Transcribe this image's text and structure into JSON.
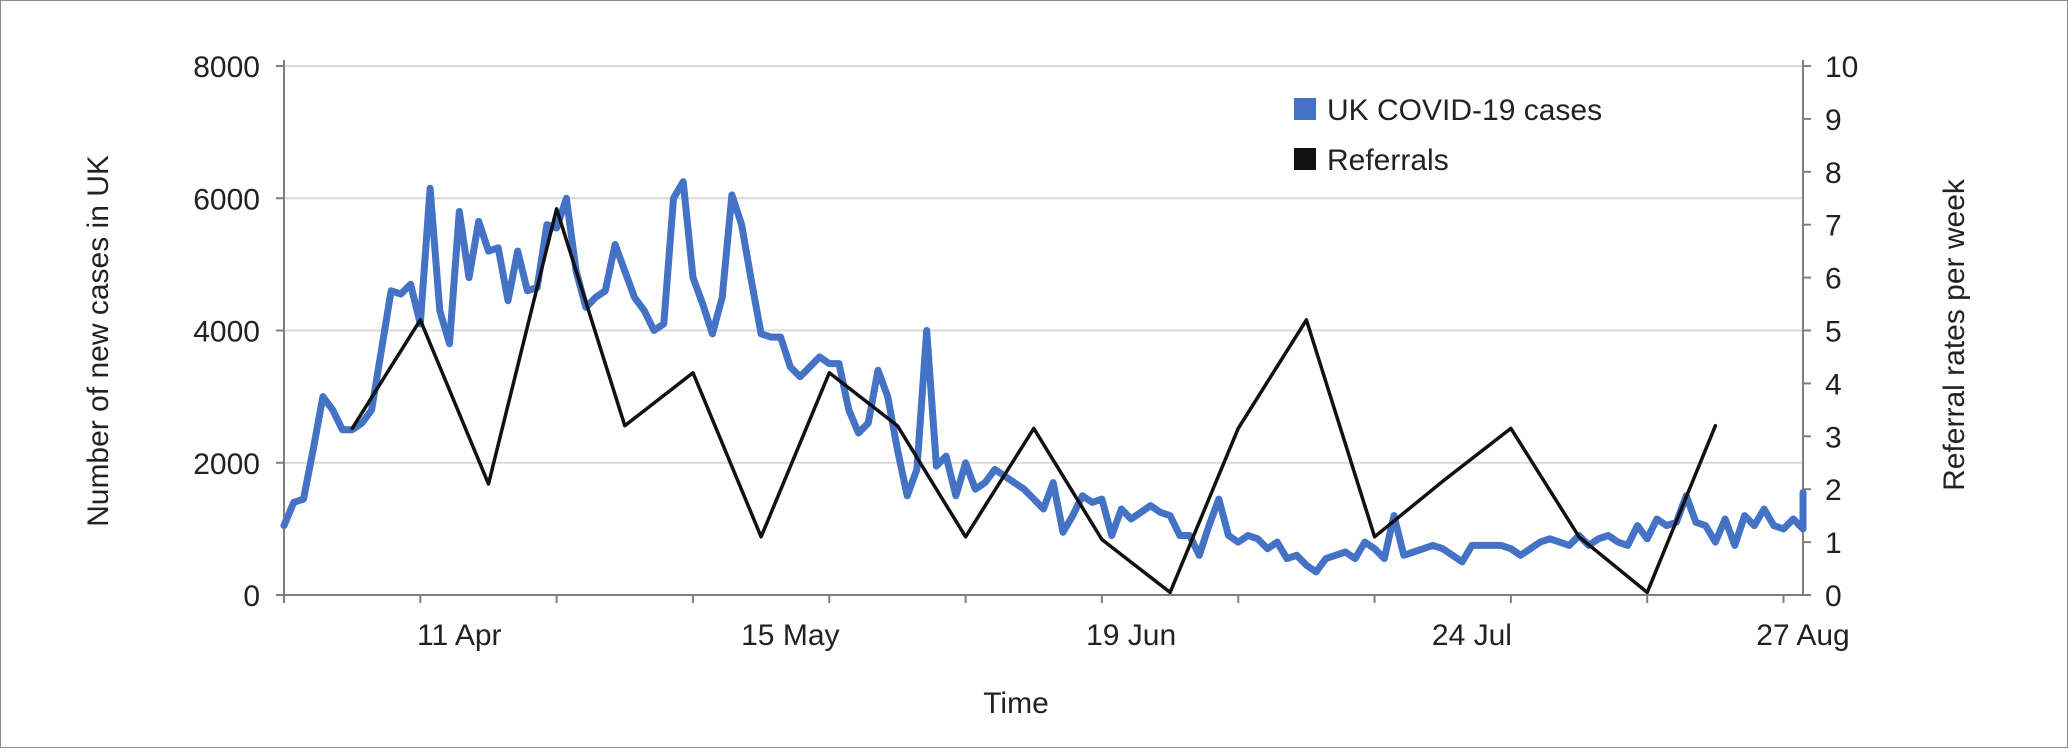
{
  "chart_data": {
    "type": "line",
    "title": "",
    "xlabel": "Time",
    "ylabel_left": "Number of new cases in UK",
    "ylabel_right": "Referral rates per week",
    "ylim_left": [
      0,
      8000
    ],
    "ylim_right": [
      0,
      10
    ],
    "grid": "horizontal",
    "legend_position": "top-right",
    "x_start_date": "2020-03-24",
    "x_end_date": "2020-08-27",
    "x_tick_labels": [
      {
        "date": "2020-04-11",
        "label": "11 Apr"
      },
      {
        "date": "2020-05-15",
        "label": "15 May"
      },
      {
        "date": "2020-06-19",
        "label": "19 Jun"
      },
      {
        "date": "2020-07-24",
        "label": "24 Jul"
      },
      {
        "date": "2020-08-27",
        "label": "27 Aug"
      }
    ],
    "y_left_ticks": [
      0,
      2000,
      4000,
      6000,
      8000
    ],
    "y_right_ticks": [
      0,
      1,
      2,
      3,
      4,
      5,
      6,
      7,
      8,
      9,
      10
    ],
    "series": [
      {
        "name": "UK COVID-19 cases",
        "axis": "left",
        "color": "#4472c4",
        "points": [
          [
            "2020-03-24",
            1050
          ],
          [
            "2020-03-25",
            1400
          ],
          [
            "2020-03-26",
            1450
          ],
          [
            "2020-03-27",
            2200
          ],
          [
            "2020-03-28",
            3000
          ],
          [
            "2020-03-29",
            2800
          ],
          [
            "2020-03-30",
            2500
          ],
          [
            "2020-03-31",
            2500
          ],
          [
            "2020-04-01",
            2600
          ],
          [
            "2020-04-02",
            2800
          ],
          [
            "2020-04-03",
            3700
          ],
          [
            "2020-04-04",
            4600
          ],
          [
            "2020-04-05",
            4550
          ],
          [
            "2020-04-06",
            4700
          ],
          [
            "2020-04-07",
            4100
          ],
          [
            "2020-04-08",
            6150
          ],
          [
            "2020-04-09",
            4300
          ],
          [
            "2020-04-10",
            3800
          ],
          [
            "2020-04-11",
            5800
          ],
          [
            "2020-04-12",
            4800
          ],
          [
            "2020-04-13",
            5650
          ],
          [
            "2020-04-14",
            5200
          ],
          [
            "2020-04-15",
            5250
          ],
          [
            "2020-04-16",
            4450
          ],
          [
            "2020-04-17",
            5200
          ],
          [
            "2020-04-18",
            4600
          ],
          [
            "2020-04-19",
            4650
          ],
          [
            "2020-04-20",
            5600
          ],
          [
            "2020-04-21",
            5550
          ],
          [
            "2020-04-22",
            6000
          ],
          [
            "2020-04-23",
            4900
          ],
          [
            "2020-04-24",
            4350
          ],
          [
            "2020-04-25",
            4500
          ],
          [
            "2020-04-26",
            4600
          ],
          [
            "2020-04-27",
            5300
          ],
          [
            "2020-04-28",
            4900
          ],
          [
            "2020-04-29",
            4500
          ],
          [
            "2020-04-30",
            4300
          ],
          [
            "2020-05-01",
            4000
          ],
          [
            "2020-05-02",
            4100
          ],
          [
            "2020-05-03",
            6000
          ],
          [
            "2020-05-04",
            6250
          ],
          [
            "2020-05-05",
            4800
          ],
          [
            "2020-05-06",
            4400
          ],
          [
            "2020-05-07",
            3950
          ],
          [
            "2020-05-08",
            4500
          ],
          [
            "2020-05-09",
            6050
          ],
          [
            "2020-05-10",
            5600
          ],
          [
            "2020-05-11",
            4750
          ],
          [
            "2020-05-12",
            3950
          ],
          [
            "2020-05-13",
            3900
          ],
          [
            "2020-05-14",
            3900
          ],
          [
            "2020-05-15",
            3450
          ],
          [
            "2020-05-16",
            3300
          ],
          [
            "2020-05-17",
            3450
          ],
          [
            "2020-05-18",
            3600
          ],
          [
            "2020-05-19",
            3500
          ],
          [
            "2020-05-20",
            3500
          ],
          [
            "2020-05-21",
            2800
          ],
          [
            "2020-05-22",
            2450
          ],
          [
            "2020-05-23",
            2600
          ],
          [
            "2020-05-24",
            3400
          ],
          [
            "2020-05-25",
            3000
          ],
          [
            "2020-05-26",
            2200
          ],
          [
            "2020-05-27",
            1500
          ],
          [
            "2020-05-28",
            1900
          ],
          [
            "2020-05-29",
            4000
          ],
          [
            "2020-05-30",
            1950
          ],
          [
            "2020-05-31",
            2100
          ],
          [
            "2020-06-01",
            1500
          ],
          [
            "2020-06-02",
            2000
          ],
          [
            "2020-06-03",
            1600
          ],
          [
            "2020-06-04",
            1700
          ],
          [
            "2020-06-05",
            1900
          ],
          [
            "2020-06-06",
            1800
          ],
          [
            "2020-06-07",
            1700
          ],
          [
            "2020-06-08",
            1600
          ],
          [
            "2020-06-09",
            1450
          ],
          [
            "2020-06-10",
            1300
          ],
          [
            "2020-06-11",
            1700
          ],
          [
            "2020-06-12",
            950
          ],
          [
            "2020-06-13",
            1200
          ],
          [
            "2020-06-14",
            1500
          ],
          [
            "2020-06-15",
            1400
          ],
          [
            "2020-06-16",
            1450
          ],
          [
            "2020-06-17",
            900
          ],
          [
            "2020-06-18",
            1300
          ],
          [
            "2020-06-19",
            1150
          ],
          [
            "2020-06-20",
            1250
          ],
          [
            "2020-06-21",
            1350
          ],
          [
            "2020-06-22",
            1250
          ],
          [
            "2020-06-23",
            1200
          ],
          [
            "2020-06-24",
            900
          ],
          [
            "2020-06-25",
            900
          ],
          [
            "2020-06-26",
            600
          ],
          [
            "2020-06-27",
            1050
          ],
          [
            "2020-06-28",
            1450
          ],
          [
            "2020-06-29",
            900
          ],
          [
            "2020-06-30",
            800
          ],
          [
            "2020-07-01",
            900
          ],
          [
            "2020-07-02",
            850
          ],
          [
            "2020-07-03",
            700
          ],
          [
            "2020-07-04",
            800
          ],
          [
            "2020-07-05",
            550
          ],
          [
            "2020-07-06",
            600
          ],
          [
            "2020-07-07",
            450
          ],
          [
            "2020-07-08",
            350
          ],
          [
            "2020-07-09",
            550
          ],
          [
            "2020-07-10",
            600
          ],
          [
            "2020-07-11",
            650
          ],
          [
            "2020-07-12",
            550
          ],
          [
            "2020-07-13",
            800
          ],
          [
            "2020-07-14",
            700
          ],
          [
            "2020-07-15",
            550
          ],
          [
            "2020-07-16",
            1200
          ],
          [
            "2020-07-17",
            600
          ],
          [
            "2020-07-18",
            650
          ],
          [
            "2020-07-19",
            700
          ],
          [
            "2020-07-20",
            750
          ],
          [
            "2020-07-21",
            700
          ],
          [
            "2020-07-22",
            600
          ],
          [
            "2020-07-23",
            500
          ],
          [
            "2020-07-24",
            750
          ],
          [
            "2020-07-25",
            750
          ],
          [
            "2020-07-26",
            750
          ],
          [
            "2020-07-27",
            750
          ],
          [
            "2020-07-28",
            700
          ],
          [
            "2020-07-29",
            600
          ],
          [
            "2020-07-30",
            700
          ],
          [
            "2020-07-31",
            800
          ],
          [
            "2020-08-01",
            850
          ],
          [
            "2020-08-02",
            800
          ],
          [
            "2020-08-03",
            750
          ],
          [
            "2020-08-04",
            900
          ],
          [
            "2020-08-05",
            750
          ],
          [
            "2020-08-06",
            850
          ],
          [
            "2020-08-07",
            900
          ],
          [
            "2020-08-08",
            800
          ],
          [
            "2020-08-09",
            750
          ],
          [
            "2020-08-10",
            1050
          ],
          [
            "2020-08-11",
            850
          ],
          [
            "2020-08-12",
            1150
          ],
          [
            "2020-08-13",
            1050
          ],
          [
            "2020-08-14",
            1100
          ],
          [
            "2020-08-15",
            1500
          ],
          [
            "2020-08-16",
            1100
          ],
          [
            "2020-08-17",
            1050
          ],
          [
            "2020-08-18",
            800
          ],
          [
            "2020-08-19",
            1150
          ],
          [
            "2020-08-20",
            750
          ],
          [
            "2020-08-21",
            1200
          ],
          [
            "2020-08-22",
            1050
          ],
          [
            "2020-08-23",
            1300
          ],
          [
            "2020-08-24",
            1050
          ],
          [
            "2020-08-25",
            1000
          ],
          [
            "2020-08-26",
            1150
          ],
          [
            "2020-08-27",
            1000
          ],
          [
            "2020-08-27",
            1550
          ]
        ]
      },
      {
        "name": "Referrals",
        "axis": "right",
        "color": "#111111",
        "points": [
          [
            "2020-03-31",
            3.15
          ],
          [
            "2020-04-07",
            5.2
          ],
          [
            "2020-04-14",
            2.1
          ],
          [
            "2020-04-21",
            7.3
          ],
          [
            "2020-04-28",
            3.2
          ],
          [
            "2020-05-05",
            4.2
          ],
          [
            "2020-05-12",
            1.1
          ],
          [
            "2020-05-19",
            4.2
          ],
          [
            "2020-05-26",
            3.2
          ],
          [
            "2020-06-02",
            1.1
          ],
          [
            "2020-06-09",
            3.15
          ],
          [
            "2020-06-16",
            1.05
          ],
          [
            "2020-06-23",
            0.05
          ],
          [
            "2020-06-30",
            3.15
          ],
          [
            "2020-07-07",
            5.2
          ],
          [
            "2020-07-14",
            1.1
          ],
          [
            "2020-07-21",
            2.15
          ],
          [
            "2020-07-28",
            3.15
          ],
          [
            "2020-08-04",
            1.1
          ],
          [
            "2020-08-11",
            0.05
          ],
          [
            "2020-08-18",
            3.2
          ]
        ]
      }
    ]
  }
}
